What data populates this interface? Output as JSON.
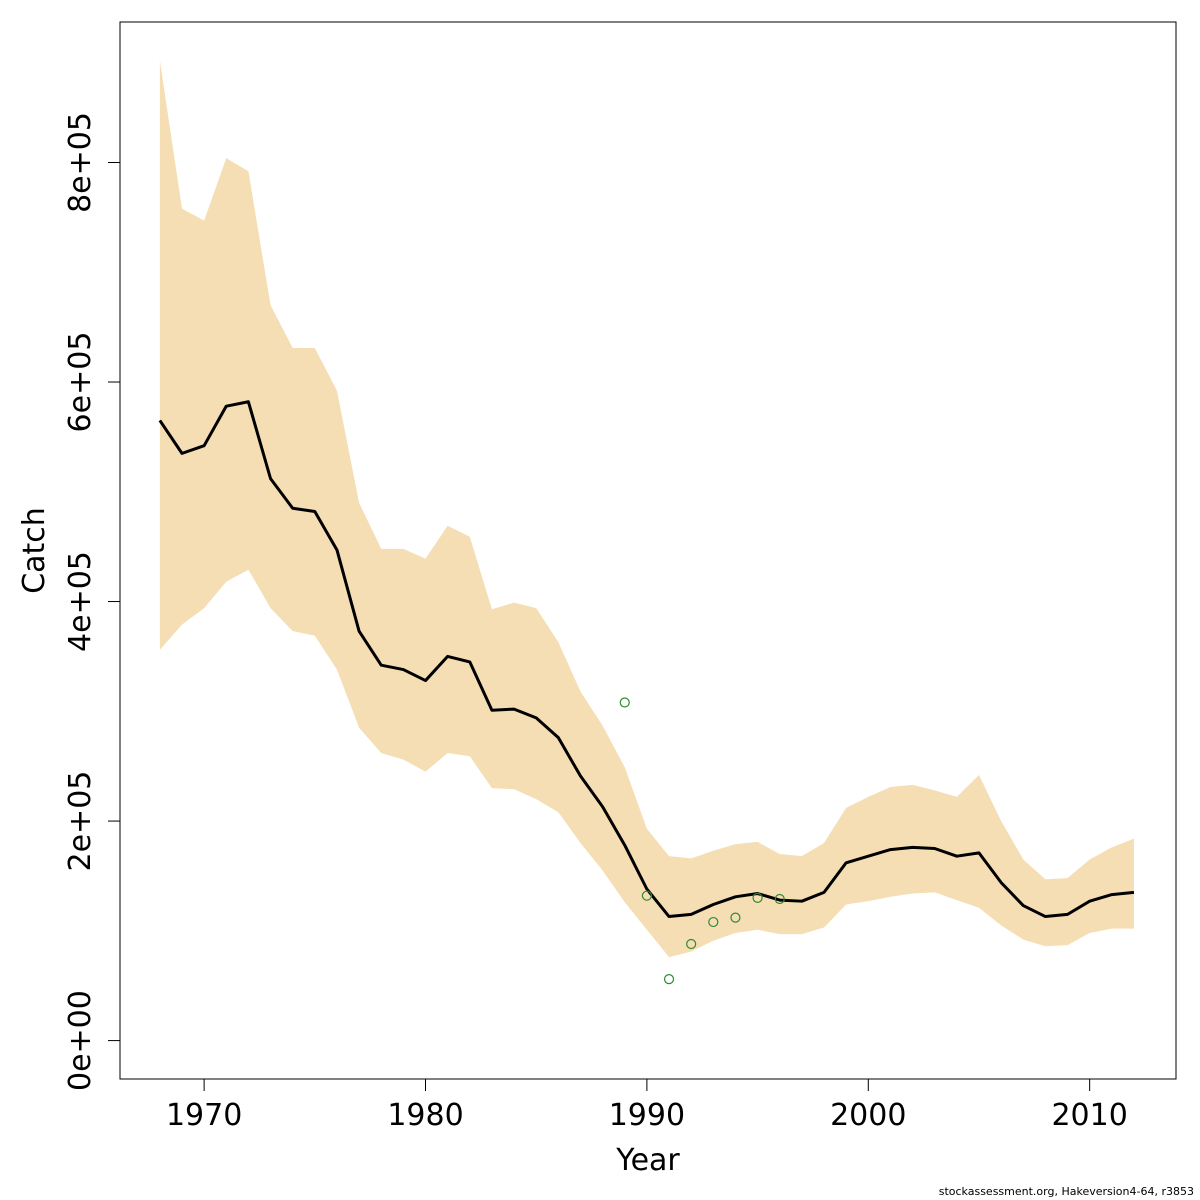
{
  "chart_data": {
    "type": "line",
    "xlabel": "Year",
    "ylabel": "Catch",
    "xlim": [
      1966.2,
      2013.9
    ],
    "ylim": [
      -35000,
      928000
    ],
    "x_ticks": [
      1970,
      1980,
      1990,
      2000,
      2010
    ],
    "y_ticks": [
      0,
      200000,
      400000,
      600000,
      800000
    ],
    "y_tick_labels": [
      "0e+00",
      "2e+05",
      "4e+05",
      "6e+05",
      "8e+05"
    ],
    "grid": false,
    "legend": "none",
    "colors": {
      "band": "#f5deb3",
      "line": "#000000",
      "points": "#2e8b2e"
    },
    "years": [
      1968,
      1969,
      1970,
      1971,
      1972,
      1973,
      1974,
      1975,
      1976,
      1977,
      1978,
      1979,
      1980,
      1981,
      1982,
      1983,
      1984,
      1985,
      1986,
      1987,
      1988,
      1989,
      1990,
      1991,
      1992,
      1993,
      1994,
      1995,
      1996,
      1997,
      1998,
      1999,
      2000,
      2001,
      2002,
      2003,
      2004,
      2005,
      2006,
      2007,
      2008,
      2009,
      2010,
      2011,
      2012
    ],
    "series": [
      {
        "values": [
          565000,
          535000,
          542000,
          578000,
          582000,
          512000,
          485000,
          482000,
          447000,
          373000,
          342000,
          338000,
          328000,
          350000,
          345000,
          301000,
          302000,
          294000,
          276000,
          241000,
          213000,
          178000,
          138000,
          113000,
          115000,
          124000,
          131000,
          134000,
          128000,
          127000,
          135000,
          162000,
          168000,
          174000,
          176000,
          175000,
          168000,
          171000,
          144000,
          123000,
          113000,
          115000,
          127000,
          133000,
          135000
        ]
      },
      {
        "upper": [
          893000,
          758000,
          747000,
          804000,
          792000,
          670000,
          631000,
          631000,
          592000,
          490000,
          448000,
          448000,
          439000,
          469000,
          459000,
          393000,
          399000,
          394000,
          363000,
          318000,
          287000,
          249000,
          193000,
          168000,
          166000,
          173000,
          179000,
          181000,
          170000,
          168000,
          180000,
          212000,
          222000,
          231000,
          233000,
          228000,
          222000,
          242000,
          200000,
          165000,
          147000,
          148000,
          165000,
          176000,
          184000
        ],
        "lower": [
          356000,
          379000,
          394000,
          418000,
          429000,
          394000,
          373000,
          369000,
          338000,
          285000,
          262000,
          256000,
          245000,
          262000,
          259000,
          230000,
          229000,
          220000,
          208000,
          180000,
          155000,
          126000,
          101000,
          76000,
          81000,
          91000,
          98000,
          101000,
          97000,
          97000,
          103000,
          124000,
          127000,
          131000,
          134000,
          135000,
          128000,
          121000,
          105000,
          92000,
          86000,
          87000,
          98000,
          102000,
          102000
        ]
      },
      {
        "x": [
          1989,
          1990,
          1991,
          1992,
          1993,
          1994,
          1995,
          1996
        ],
        "values": [
          308000,
          132000,
          56000,
          88000,
          108000,
          112000,
          130000,
          129000
        ]
      }
    ]
  },
  "footer": "stockassessment.org, Hakeversion4-64, r3853"
}
